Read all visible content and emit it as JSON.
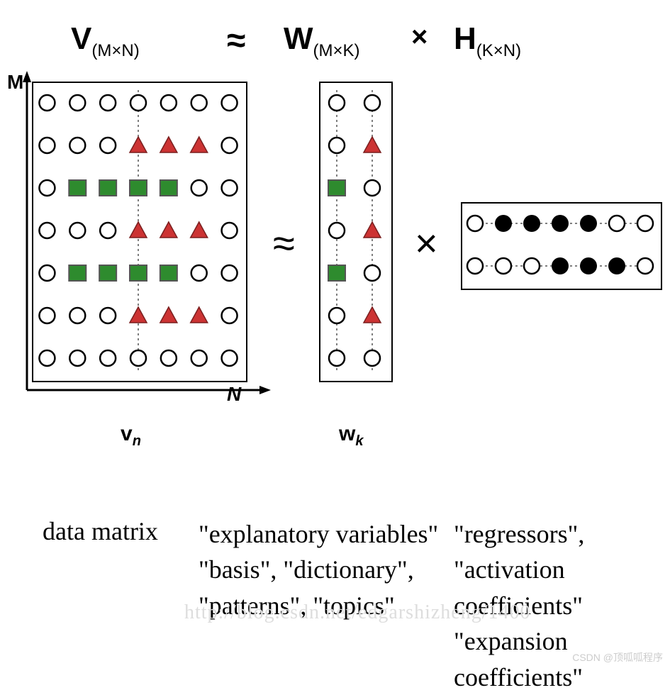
{
  "title": {
    "V": "V",
    "V_sub": "(M×N)",
    "approx1": "≈",
    "W": "W",
    "W_sub": "(M×K)",
    "times": "×",
    "H": "H",
    "H_sub": "(K×N)",
    "title_fontsize": 44,
    "sub_fontsize": 24
  },
  "axes": {
    "M": "M",
    "N": "N",
    "arrow_color": "#000000"
  },
  "V_matrix": {
    "rows": 7,
    "cols": 7,
    "cell": 38,
    "border_color": "#000000",
    "grid": [
      [
        "c",
        "c",
        "c",
        "c",
        "c",
        "c",
        "c"
      ],
      [
        "c",
        "c",
        "c",
        "t",
        "t",
        "t",
        "c"
      ],
      [
        "c",
        "s",
        "s",
        "s",
        "s",
        "c",
        "c"
      ],
      [
        "c",
        "c",
        "c",
        "t",
        "t",
        "t",
        "c"
      ],
      [
        "c",
        "s",
        "s",
        "s",
        "s",
        "c",
        "c"
      ],
      [
        "c",
        "c",
        "c",
        "t",
        "t",
        "t",
        "c"
      ],
      [
        "c",
        "c",
        "c",
        "c",
        "c",
        "c",
        "c"
      ]
    ],
    "highlight_col": 3,
    "label_below": "v",
    "label_sub": "n"
  },
  "W_matrix": {
    "rows": 7,
    "cols": 2,
    "cell": 38,
    "grid": [
      [
        "c",
        "c"
      ],
      [
        "c",
        "t"
      ],
      [
        "s",
        "c"
      ],
      [
        "c",
        "t"
      ],
      [
        "s",
        "c"
      ],
      [
        "c",
        "t"
      ],
      [
        "c",
        "c"
      ]
    ],
    "highlight_col": 1,
    "label_below": "w",
    "label_sub": "k"
  },
  "H_matrix": {
    "rows": 2,
    "cols": 7,
    "cell": 38,
    "grid": [
      [
        "c",
        "f",
        "f",
        "f",
        "f",
        "c",
        "c"
      ],
      [
        "c",
        "c",
        "c",
        "f",
        "f",
        "f",
        "c"
      ]
    ],
    "highlight_rows": [
      0,
      1
    ]
  },
  "symbols": {
    "approx": "≈",
    "times": "×",
    "approx_fontsize": 56,
    "times_fontsize": 56
  },
  "colors": {
    "circle_stroke": "#000000",
    "circle_fill": "#ffffff",
    "triangle_fill": "#cc3333",
    "triangle_stroke": "#7a1f1f",
    "square_fill": "#2e8b2e",
    "square_stroke": "#555555",
    "filled_circle": "#000000",
    "dotted": "#555555",
    "background": "#ffffff"
  },
  "captions": {
    "V": "data matrix",
    "W_lines": [
      "\"explanatory variables\"",
      "\"basis\", \"dictionary\",",
      "\"patterns\", \"topics\""
    ],
    "H_lines": [
      "\"regressors\",",
      "\"activation coefficients\"",
      "\"expansion coefficients\""
    ],
    "fontsize": 36
  },
  "watermark_faint": "http://blog.csdn.net/edgarshizheng/1400",
  "watermark_corner": "CSDN @顶呱呱程序"
}
